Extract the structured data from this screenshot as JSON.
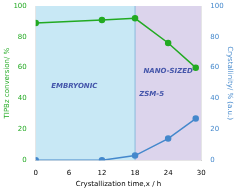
{
  "chart_data": {
    "type": "line",
    "xlabel": "Crystallization time,x / h",
    "ylabel": "TIPBz conversion/ %",
    "y2label": "Crystallinity/ % (a.u.)",
    "x": [
      0,
      12,
      18,
      24,
      29
    ],
    "series": [
      {
        "values": [
          89,
          91,
          92,
          76,
          60
        ],
        "color": "#22aa22",
        "marker": "o"
      },
      {
        "values": [
          0,
          0,
          3,
          14,
          27
        ],
        "color": "#4488cc",
        "marker": "o",
        "axis": "y2"
      }
    ],
    "xlim": [
      0,
      30
    ],
    "xticks": [
      0,
      6,
      12,
      18,
      24,
      30
    ],
    "ylim": [
      0,
      100
    ],
    "yticks": [
      0,
      20,
      40,
      60,
      80,
      100
    ],
    "y2lim": [
      0,
      100
    ],
    "y2ticks": [
      0,
      20,
      40,
      60,
      80,
      100
    ],
    "grid": false,
    "regions": [
      {
        "from": 0,
        "to": 18,
        "color": "#c8e8f5"
      },
      {
        "from": 18,
        "to": 30,
        "color": "#dcd4ec"
      }
    ],
    "vlines": [
      {
        "x": 18,
        "color": "#88bbdd"
      }
    ],
    "annotations": [
      {
        "text": "EMBRYONIC",
        "x": 7,
        "y": 48,
        "color": "#4455aa"
      },
      {
        "text": "NANO-SIZED",
        "x": 24,
        "y": 58,
        "color": "#4455aa"
      },
      {
        "text": "ZSM-5",
        "x": 21,
        "y": 43,
        "color": "#4455aa"
      }
    ]
  }
}
